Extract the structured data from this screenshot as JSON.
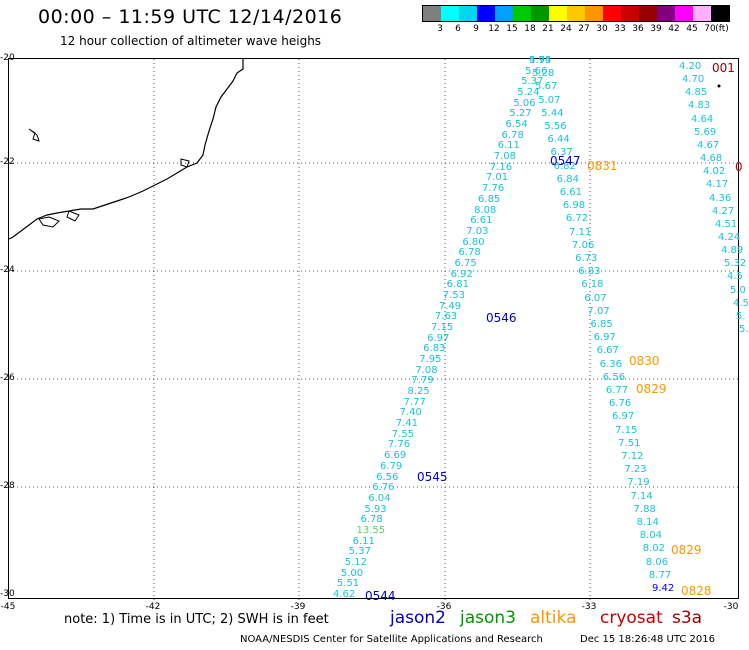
{
  "title": "00:00  –  11:59 UTC 12/14/2016",
  "subtitle": "12 hour collection of altimeter wave heighs",
  "legend": {
    "unit": "(ft)",
    "colors": [
      "#7f7f7f",
      "#00ffff",
      "#00d8f0",
      "#0000ff",
      "#00a0ff",
      "#00c800",
      "#009600",
      "#ffff00",
      "#ffc800",
      "#ff9600",
      "#ff0000",
      "#c80000",
      "#960000",
      "#800080",
      "#ff00ff",
      "#ffb0ff",
      "#000000"
    ],
    "labels": [
      "3",
      "6",
      "9",
      "12",
      "15",
      "18",
      "21",
      "24",
      "27",
      "30",
      "33",
      "36",
      "39",
      "42",
      "45",
      "70"
    ]
  },
  "lat_labels": [
    "-20",
    "-22",
    "-24",
    "-26",
    "-28",
    "-30"
  ],
  "lon_labels": [
    "-45",
    "-42",
    "-39",
    "-36",
    "-33",
    "-30"
  ],
  "note": "note: 1) Time is in UTC; 2) SWH is in feet",
  "satellites": [
    {
      "name": "jason2",
      "color": "#0000c8"
    },
    {
      "name": "jason3",
      "color": "#009600"
    },
    {
      "name": "altika",
      "color": "#ff9600"
    },
    {
      "name": "cryosat",
      "color": "#c80000"
    },
    {
      "name": "s3a",
      "color": "#960000"
    }
  ],
  "footer": "NOAA/NESDIS Center for Satellite Applications and Research",
  "footer_date": "Dec 15 18:26:48 UTC 2016",
  "track_labels": [
    "0547",
    "0831",
    "0546",
    "0830",
    "0829",
    "0545",
    "0829",
    "0544",
    "0828",
    "001",
    "0"
  ],
  "track_a": [
    "5.75",
    "5.66",
    "5.37",
    "5.24",
    "5.06",
    "5.27",
    "6.54",
    "6.78",
    "6.11",
    "7.08",
    "7.16",
    "7.01",
    "7.76",
    "6.85",
    "8.08",
    "6.61",
    "7.03",
    "6.80",
    "6.78",
    "6.75",
    "6.92",
    "6.81",
    "7.53",
    "7.49",
    "7.63",
    "7.15",
    "6.97",
    "6.83",
    "7.95",
    "7.08",
    "7.79",
    "8.25",
    "7.77",
    "7.40",
    "7.41",
    "7.55",
    "7.76",
    "6.69",
    "6.79",
    "6.56",
    "6.76",
    "6.04",
    "5.93",
    "6.78",
    "13.55",
    "6.11",
    "5.37",
    "5.12",
    "5.00",
    "5.51",
    "4.62"
  ],
  "track_b": [
    "4.94",
    "5.28",
    "5.67",
    "5.07",
    "5.44",
    "5.56",
    "6.44",
    "6.37",
    "6.82",
    "6.84",
    "6.61",
    "6.98",
    "6.72",
    "7.11",
    "7.06",
    "6.73",
    "6.83",
    "6.18",
    "6.07",
    "7.07",
    "6.85",
    "6.97",
    "6.67",
    "6.36",
    "6.56",
    "6.77",
    "6.76",
    "6.97",
    "7.15",
    "7.51",
    "7.12",
    "7.23",
    "7.19",
    "7.14",
    "7.88",
    "8.14",
    "8.04",
    "8.02",
    "8.06",
    "8.77",
    "9.42"
  ],
  "track_c": [
    "4.20",
    "4.70",
    "4.85",
    "4.83",
    "4.64",
    "5.69",
    "4.67",
    "4.68",
    "4.02",
    "4.17",
    "4.36",
    "4.27",
    "4.51",
    "4.24",
    "4.89",
    "5.32",
    "4.5",
    "5.0",
    "4.5",
    "5.",
    "5."
  ]
}
